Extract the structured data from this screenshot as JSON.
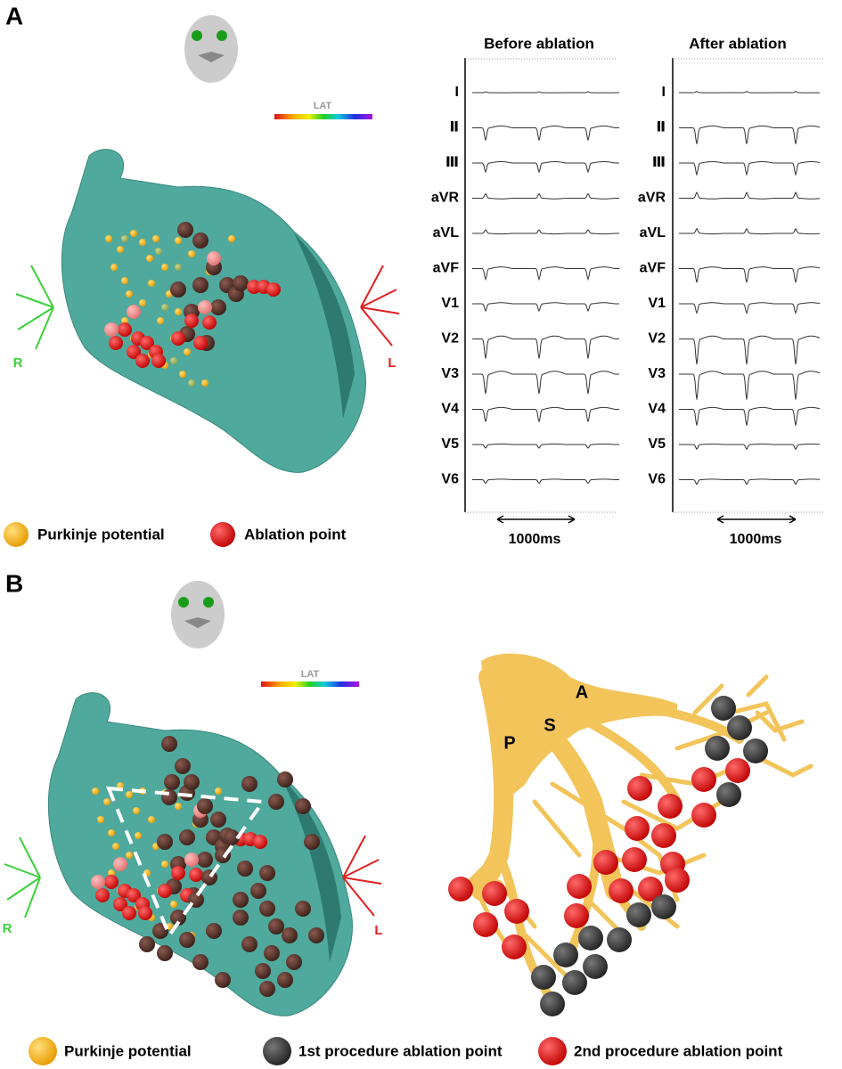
{
  "panel_a": {
    "label": "A",
    "lat_label": "LAT",
    "axis_right": "R",
    "axis_left": "L",
    "ecg": {
      "columns": [
        "Before ablation",
        "After ablation"
      ],
      "leads": [
        "I",
        "Ⅱ",
        "Ⅲ",
        "aVR",
        "aVL",
        "aVF",
        "V1",
        "V2",
        "V3",
        "V4",
        "V5",
        "V6"
      ],
      "scale": "1000ms"
    },
    "legend": [
      "Purkinje potential",
      "Ablation point"
    ]
  },
  "panel_b": {
    "label": "B",
    "lat_label": "LAT",
    "axis_right": "R",
    "axis_left": "L",
    "branches": [
      "P",
      "S",
      "A"
    ],
    "legend": [
      "Purkinje potential",
      "1st procedure ablation point",
      "2nd procedure ablation point"
    ]
  }
}
